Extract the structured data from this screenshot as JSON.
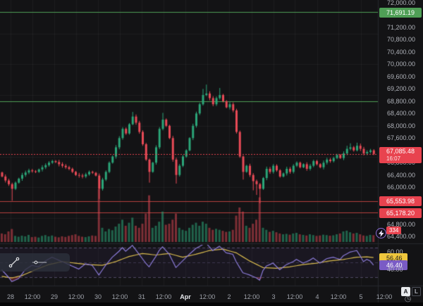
{
  "labels": {
    "green_level": "71,691.19",
    "last_price": "67,085.48",
    "countdown": "16:07",
    "red_level_1": "65,553.98",
    "red_level_2": "65,178.20",
    "last_volume": "334",
    "rsi_ma": "56.46",
    "rsi_value": "46.40",
    "rsi_tick_upper": "60.00",
    "rsi_tick_lower": "40.00"
  },
  "buttons": {
    "auto": "A",
    "log": "L"
  },
  "icons": {
    "clock": "◷"
  },
  "colors": {
    "background": "#131315",
    "up_candle": "#2ba578",
    "down_candle": "#e84a56",
    "up_volume": "rgba(43,165,120,0.55)",
    "down_volume": "rgba(232,74,86,0.5)",
    "green_line": "#4f9f56",
    "red_line": "#b5413e",
    "last_price_line": "#e8434f",
    "rsi_line": "#8b7bd8",
    "rsi_ma_line": "#d9bb4e",
    "rsi_band_fill": "rgba(126,87,194,0.07)",
    "rsi_band_line": "rgba(140,125,180,0.5)",
    "oversold_fill": "rgba(200,60,70,0.35)",
    "grid": "rgba(255,255,255,0.045)",
    "separator": "#26282e"
  },
  "chart_data": {
    "type": "candlestick",
    "x_axis": {
      "ticks": [
        "28",
        "12:00",
        "29",
        "12:00",
        "30",
        "12:00",
        "31",
        "12:00",
        "Apr",
        "12:00",
        "2",
        "12:00",
        "3",
        "12:00",
        "4",
        "12:00",
        "5",
        "12:00"
      ],
      "strong": [
        false,
        false,
        false,
        false,
        false,
        false,
        false,
        false,
        true,
        false,
        false,
        false,
        false,
        false,
        false,
        false,
        false,
        false
      ],
      "positions": [
        15,
        46,
        77,
        108,
        139,
        170,
        201,
        232,
        263,
        294,
        325,
        357,
        388,
        418,
        450,
        480,
        512,
        545
      ]
    },
    "price_pane": {
      "y_axis_ticks": [
        {
          "label": "72,000.00",
          "value": 72000
        },
        {
          "label": "71,200.00",
          "value": 71200
        },
        {
          "label": "70,800.00",
          "value": 70800
        },
        {
          "label": "70,400.00",
          "value": 70400
        },
        {
          "label": "70,000.00",
          "value": 70000
        },
        {
          "label": "69,600.00",
          "value": 69600
        },
        {
          "label": "69,200.00",
          "value": 69200
        },
        {
          "label": "68,800.00",
          "value": 68800
        },
        {
          "label": "68,400.00",
          "value": 68400
        },
        {
          "label": "68,000.00",
          "value": 68000
        },
        {
          "label": "67,600.00",
          "value": 67600
        },
        {
          "label": "67,200.00",
          "value": 67200
        },
        {
          "label": "66,800.00",
          "value": 66800
        },
        {
          "label": "66,400.00",
          "value": 66400
        },
        {
          "label": "66,000.00",
          "value": 66000
        },
        {
          "label": "64,800.00",
          "value": 64800
        },
        {
          "label": "64,400.00",
          "value": 64400
        }
      ],
      "grid_prices": [
        71000,
        70000,
        69000,
        68000,
        67000,
        66000,
        65000
      ],
      "levels": [
        {
          "value": 71691.19,
          "color": "green",
          "label": "71,691.19"
        },
        {
          "value": 68800,
          "color": "green",
          "label": null
        },
        {
          "value": 65553.98,
          "color": "red",
          "label": "65,553.98"
        },
        {
          "value": 65178.2,
          "color": "red",
          "label": "65,178.20"
        }
      ],
      "last_price": {
        "value": 67085.48,
        "label": "67,085.48",
        "countdown": "16:07",
        "direction": "down"
      },
      "first_open": 66480,
      "closes": [
        66350,
        66220,
        66100,
        65950,
        66150,
        66280,
        66400,
        66480,
        66550,
        66520,
        66500,
        66580,
        66650,
        66720,
        66800,
        66850,
        66820,
        66750,
        66700,
        66650,
        66600,
        66500,
        66400,
        66380,
        66350,
        66420,
        66500,
        66470,
        66380,
        65950,
        66250,
        66500,
        66800,
        67000,
        67300,
        67600,
        67900,
        67750,
        68050,
        68300,
        68100,
        67800,
        67400,
        66900,
        66500,
        66800,
        67300,
        67900,
        68200,
        68000,
        67600,
        66900,
        66400,
        66700,
        67000,
        67200,
        67600,
        68000,
        68400,
        68700,
        69000,
        69050,
        68900,
        68700,
        68900,
        69000,
        68800,
        68600,
        68700,
        68500,
        67800,
        67000,
        66500,
        66700,
        66400,
        66200,
        66100,
        65950,
        66300,
        66600,
        66500,
        66700,
        66550,
        66350,
        66450,
        66600,
        66500,
        66700,
        66800,
        66650,
        66750,
        66600,
        66700,
        66850,
        66750,
        66650,
        66800,
        66900,
        66850,
        66950,
        67050,
        66950,
        67100,
        67250,
        67300,
        67200,
        67350,
        67250,
        67100,
        67150,
        67200,
        67085.48
      ],
      "wick_highs": {
        "39": 68450,
        "48": 68420,
        "60": 69200,
        "61": 69340,
        "65": 69230,
        "103": 67350,
        "104": 67430,
        "106": 67450
      },
      "wick_lows": {
        "3": 65560,
        "29": 65620,
        "44": 66150,
        "52": 66120,
        "72": 66250,
        "75": 65900,
        "76": 65750,
        "77": 65480
      },
      "volumes": [
        420,
        380,
        520,
        640,
        300,
        260,
        310,
        280,
        350,
        240,
        260,
        220,
        300,
        340,
        280,
        320,
        260,
        230,
        280,
        250,
        300,
        340,
        380,
        300,
        260,
        240,
        280,
        320,
        300,
        2600,
        700,
        520,
        640,
        580,
        760,
        900,
        1100,
        800,
        950,
        1200,
        800,
        700,
        900,
        1400,
        2300,
        700,
        800,
        1000,
        1500,
        850,
        900,
        1100,
        1400,
        700,
        600,
        550,
        700,
        850,
        950,
        800,
        1000,
        900,
        700,
        600,
        650,
        600,
        550,
        500,
        520,
        600,
        1300,
        1700,
        1500,
        800,
        700,
        900,
        1100,
        2200,
        700,
        600,
        500,
        550,
        480,
        420,
        380,
        400,
        360,
        420,
        450,
        380,
        350,
        320,
        380,
        340,
        300,
        320,
        360,
        340,
        310,
        330,
        380,
        420,
        520,
        560,
        480,
        420,
        450,
        380,
        320,
        300,
        350,
        334
      ],
      "last_volume": {
        "value": 334,
        "label": "334"
      }
    },
    "rsi_pane": {
      "bands": [
        70,
        50,
        30
      ],
      "tick_labels": [
        "60.00",
        "40.00"
      ],
      "last_rsi": {
        "value": 46.4,
        "label": "46.40"
      },
      "last_ma": {
        "value": 56.46,
        "label": "56.46"
      },
      "rsi_points": [
        [
          0,
          40
        ],
        [
          2,
          30
        ],
        [
          3,
          24
        ],
        [
          5,
          28
        ],
        [
          7,
          40
        ],
        [
          9,
          46
        ],
        [
          11,
          44
        ],
        [
          13,
          52
        ],
        [
          15,
          57
        ],
        [
          17,
          53
        ],
        [
          19,
          49
        ],
        [
          21,
          45
        ],
        [
          23,
          41
        ],
        [
          25,
          48
        ],
        [
          27,
          46
        ],
        [
          29,
          33
        ],
        [
          31,
          46
        ],
        [
          33,
          57
        ],
        [
          35,
          65
        ],
        [
          36,
          70
        ],
        [
          37,
          65
        ],
        [
          39,
          73
        ],
        [
          41,
          61
        ],
        [
          43,
          49
        ],
        [
          44,
          44
        ],
        [
          46,
          58
        ],
        [
          47,
          66
        ],
        [
          48,
          71
        ],
        [
          50,
          61
        ],
        [
          52,
          43
        ],
        [
          54,
          52
        ],
        [
          56,
          61
        ],
        [
          58,
          69
        ],
        [
          60,
          74
        ],
        [
          61,
          76
        ],
        [
          62,
          71
        ],
        [
          63,
          66
        ],
        [
          65,
          72
        ],
        [
          67,
          63
        ],
        [
          69,
          61
        ],
        [
          70,
          51
        ],
        [
          72,
          36
        ],
        [
          74,
          33
        ],
        [
          76,
          29
        ],
        [
          77,
          26
        ],
        [
          78,
          39
        ],
        [
          79,
          45
        ],
        [
          81,
          49
        ],
        [
          83,
          40
        ],
        [
          85,
          47
        ],
        [
          87,
          51
        ],
        [
          88,
          54
        ],
        [
          90,
          49
        ],
        [
          92,
          53
        ],
        [
          93,
          56
        ],
        [
          95,
          49
        ],
        [
          97,
          55
        ],
        [
          99,
          57
        ],
        [
          101,
          54
        ],
        [
          102,
          59
        ],
        [
          104,
          64
        ],
        [
          106,
          66
        ],
        [
          107,
          59
        ],
        [
          108,
          51
        ],
        [
          109,
          54
        ],
        [
          110,
          52
        ],
        [
          111,
          46.4
        ]
      ],
      "ma_points": [
        [
          0,
          31
        ],
        [
          3,
          29
        ],
        [
          6,
          32
        ],
        [
          10,
          40
        ],
        [
          14,
          47
        ],
        [
          18,
          51
        ],
        [
          22,
          49
        ],
        [
          26,
          47
        ],
        [
          30,
          46
        ],
        [
          34,
          51
        ],
        [
          38,
          58
        ],
        [
          42,
          62
        ],
        [
          46,
          60
        ],
        [
          50,
          62
        ],
        [
          54,
          57
        ],
        [
          58,
          61
        ],
        [
          62,
          66
        ],
        [
          66,
          68
        ],
        [
          70,
          63
        ],
        [
          74,
          52
        ],
        [
          78,
          43
        ],
        [
          82,
          42
        ],
        [
          86,
          44
        ],
        [
          90,
          47
        ],
        [
          94,
          49
        ],
        [
          98,
          52
        ],
        [
          102,
          54
        ],
        [
          106,
          57
        ],
        [
          109,
          57.5
        ],
        [
          111,
          56.46
        ]
      ]
    }
  }
}
